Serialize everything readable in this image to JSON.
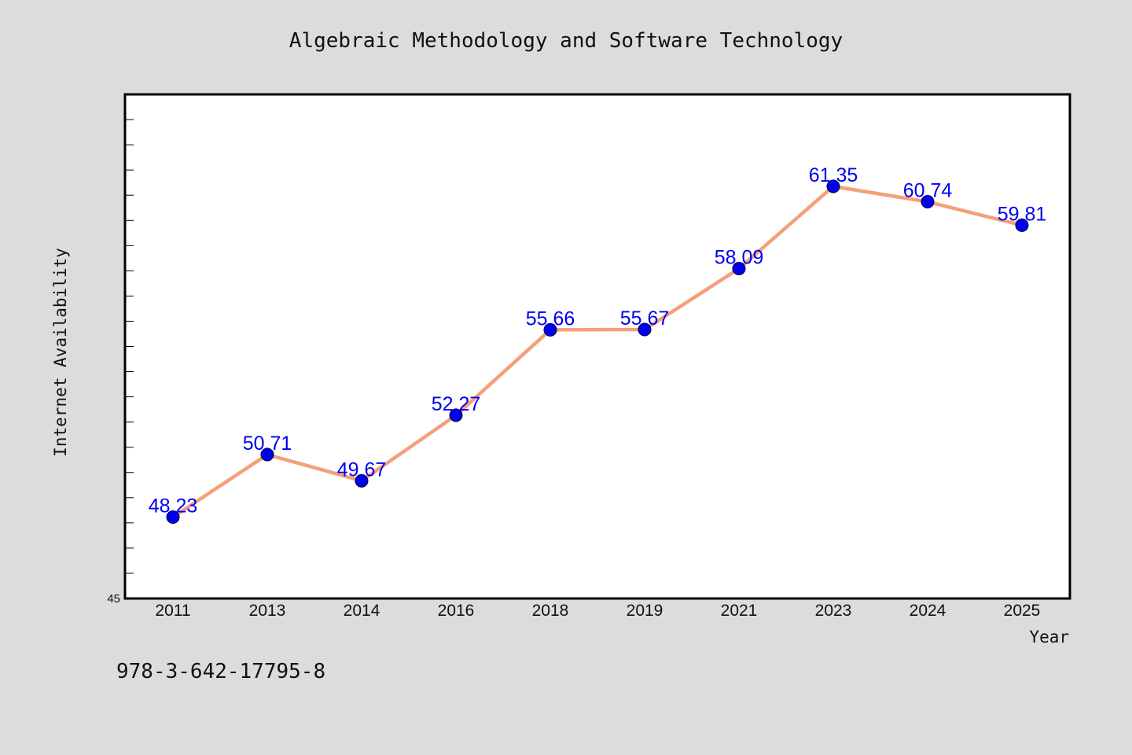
{
  "chart_data": {
    "type": "line",
    "title": "Algebraic Methodology and Software Technology",
    "xlabel": "Year",
    "ylabel": "Internet Availability",
    "categories": [
      "2011",
      "2013",
      "2014",
      "2016",
      "2018",
      "2019",
      "2021",
      "2023",
      "2024",
      "2025"
    ],
    "series": [
      {
        "values": [
          48.23,
          50.71,
          49.67,
          52.27,
          55.66,
          55.67,
          58.09,
          61.35,
          60.74,
          59.81
        ],
        "data_labels": [
          "48.23",
          "50.71",
          "49.67",
          "52.27",
          "55.66",
          "55.67",
          "58.09",
          "61.35",
          "60.74",
          "59.81"
        ]
      }
    ],
    "ylim": [
      45,
      65
    ],
    "ytick_labels": [
      "45"
    ],
    "grid": false,
    "line_color": "#f4a07a",
    "marker_color": "#0000ee",
    "label_color": "#0000ee"
  },
  "footer": {
    "isbn": "978-3-642-17795-8"
  },
  "colors": {
    "background": "#dcdcdc",
    "plot_background": "#ffffff",
    "frame": "#000000"
  }
}
